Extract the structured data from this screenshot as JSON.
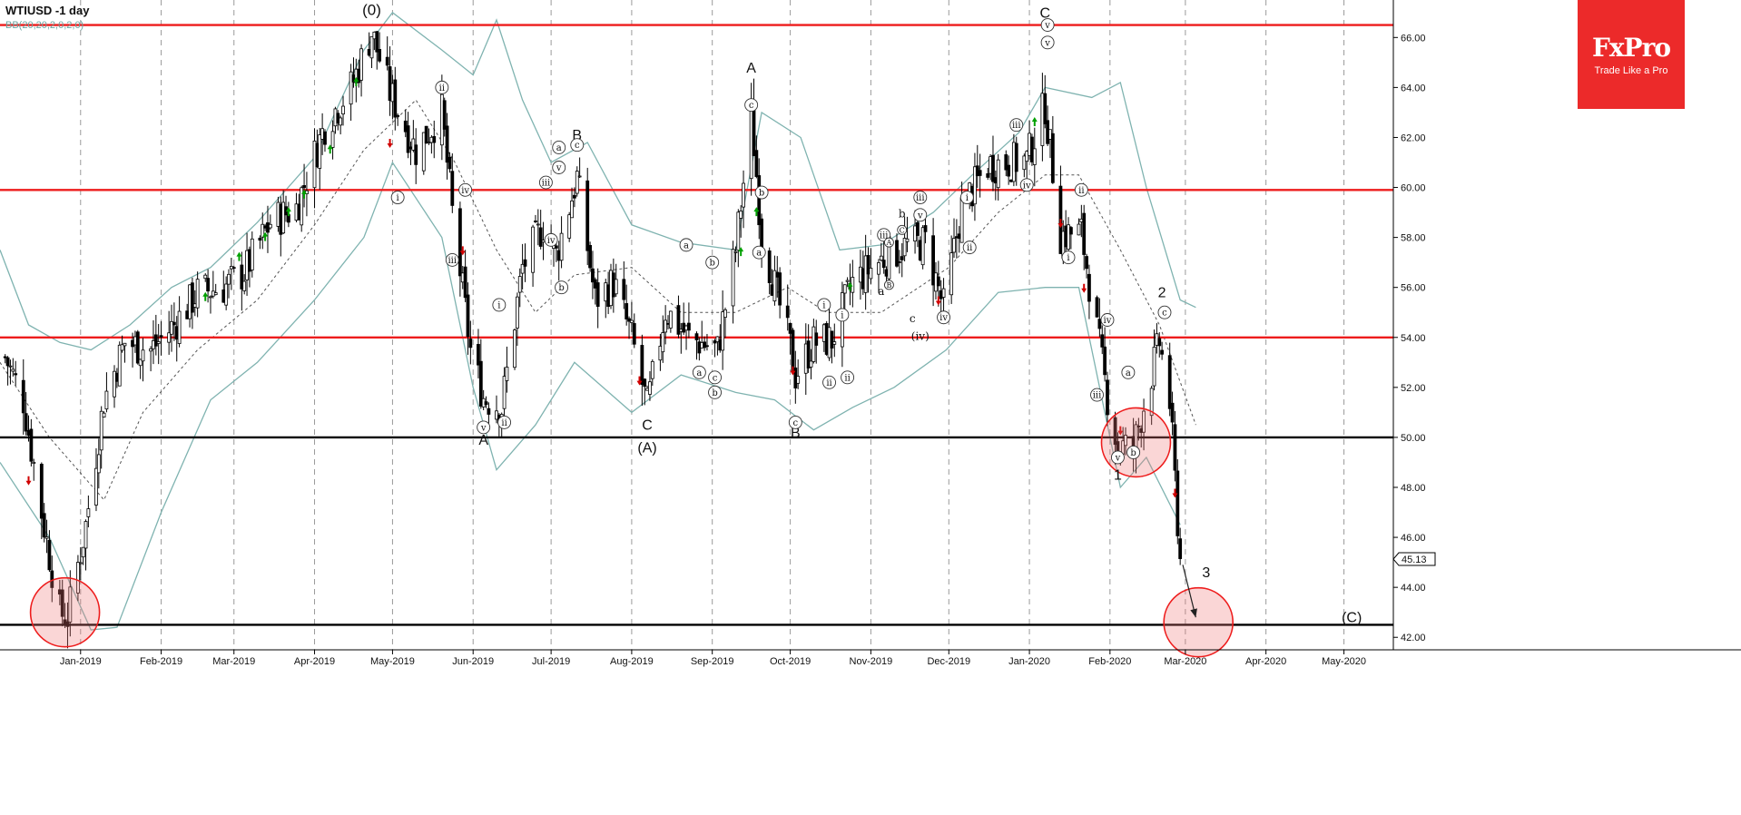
{
  "header": {
    "symbol_label": "WTIUSD -1 day",
    "indicator_label": "BB(20,20,2,0,2,0)"
  },
  "logo": {
    "name": "FxPro",
    "tagline": "Trade Like a Pro"
  },
  "colors": {
    "candle": "#000000",
    "bollinger": "#7fb3b0",
    "resistance": "#ee1c1c",
    "support": "#000000",
    "up_arrow": "#00a000",
    "down_arrow": "#d00000",
    "circle_fill": "rgba(240,120,120,0.30)",
    "circle_stroke": "#ee1c1c"
  },
  "chart_data": {
    "type": "candlestick",
    "price_axis": {
      "min": 41.5,
      "max": 67.5,
      "ticks": [
        "66.00",
        "64.00",
        "62.00",
        "60.00",
        "58.00",
        "56.00",
        "54.00",
        "52.00",
        "50.00",
        "48.00",
        "46.00",
        "44.00",
        "42.00"
      ],
      "tick_values": [
        66,
        64,
        62,
        60,
        58,
        56,
        54,
        52,
        50,
        48,
        46,
        44,
        42
      ]
    },
    "time_axis": {
      "start": "2018-12-01",
      "end": "2020-05-20",
      "labels": [
        "Jan-2019",
        "Feb-2019",
        "Mar-2019",
        "Apr-2019",
        "May-2019",
        "Jun-2019",
        "Jul-2019",
        "Aug-2019",
        "Sep-2019",
        "Oct-2019",
        "Nov-2019",
        "Dec-2019",
        "Jan-2020",
        "Feb-2020",
        "Mar-2020",
        "Apr-2020",
        "May-2020"
      ],
      "label_dates": [
        "2019-01-01",
        "2019-02-01",
        "2019-03-01",
        "2019-04-01",
        "2019-05-01",
        "2019-06-01",
        "2019-07-01",
        "2019-08-01",
        "2019-09-01",
        "2019-10-01",
        "2019-11-01",
        "2019-12-01",
        "2020-01-01",
        "2020-02-01",
        "2020-03-01",
        "2020-04-01",
        "2020-05-01"
      ]
    },
    "last_price": "45.13",
    "resistance_levels": [
      66.5,
      59.9,
      54.0
    ],
    "support_levels": [
      50.0,
      42.5
    ],
    "price_path": [
      [
        "2018-12-03",
        53.2
      ],
      [
        "2018-12-10",
        51.5
      ],
      [
        "2018-12-17",
        47.0
      ],
      [
        "2018-12-24",
        43.0
      ],
      [
        "2018-12-27",
        42.8
      ],
      [
        "2019-01-03",
        46.5
      ],
      [
        "2019-01-10",
        51.5
      ],
      [
        "2019-01-18",
        53.8
      ],
      [
        "2019-01-28",
        53.5
      ],
      [
        "2019-02-06",
        54.5
      ],
      [
        "2019-02-15",
        55.8
      ],
      [
        "2019-02-25",
        56.0
      ],
      [
        "2019-03-05",
        56.6
      ],
      [
        "2019-03-15",
        58.6
      ],
      [
        "2019-03-25",
        59.2
      ],
      [
        "2019-04-05",
        62.5
      ],
      [
        "2019-04-15",
        64.0
      ],
      [
        "2019-04-23",
        66.2
      ],
      [
        "2019-04-30",
        63.8
      ],
      [
        "2019-05-10",
        61.5
      ],
      [
        "2019-05-20",
        63.0
      ],
      [
        "2019-05-24",
        59.0
      ],
      [
        "2019-05-31",
        53.5
      ],
      [
        "2019-06-05",
        51.6
      ],
      [
        "2019-06-12",
        51.2
      ],
      [
        "2019-06-20",
        56.8
      ],
      [
        "2019-06-28",
        58.5
      ],
      [
        "2019-07-03",
        57.3
      ],
      [
        "2019-07-11",
        60.4
      ],
      [
        "2019-07-18",
        55.5
      ],
      [
        "2019-07-25",
        56.2
      ],
      [
        "2019-08-01",
        54.0
      ],
      [
        "2019-08-07",
        51.2
      ],
      [
        "2019-08-14",
        55.1
      ],
      [
        "2019-08-23",
        54.0
      ],
      [
        "2019-09-03",
        53.5
      ],
      [
        "2019-09-10",
        57.5
      ],
      [
        "2019-09-16",
        62.9
      ],
      [
        "2019-09-20",
        58.1
      ],
      [
        "2019-10-01",
        53.6
      ],
      [
        "2019-10-03",
        52.5
      ],
      [
        "2019-10-10",
        53.8
      ],
      [
        "2019-10-17",
        53.9
      ],
      [
        "2019-10-25",
        56.2
      ],
      [
        "2019-11-05",
        57.1
      ],
      [
        "2019-11-15",
        57.7
      ],
      [
        "2019-11-22",
        57.8
      ],
      [
        "2019-11-29",
        55.2
      ],
      [
        "2019-12-06",
        59.2
      ],
      [
        "2019-12-16",
        60.9
      ],
      [
        "2019-12-31",
        61.1
      ],
      [
        "2020-01-07",
        63.3
      ],
      [
        "2020-01-13",
        58.1
      ],
      [
        "2020-01-21",
        58.2
      ],
      [
        "2020-01-31",
        51.6
      ],
      [
        "2020-02-04",
        49.6
      ],
      [
        "2020-02-10",
        49.6
      ],
      [
        "2020-02-20",
        53.8
      ],
      [
        "2020-02-24",
        51.4
      ],
      [
        "2020-02-28",
        45.1
      ]
    ],
    "bollinger_upper": [
      [
        "2018-12-01",
        57.5
      ],
      [
        "2018-12-12",
        54.5
      ],
      [
        "2018-12-24",
        53.8
      ],
      [
        "2019-01-05",
        53.5
      ],
      [
        "2019-01-20",
        54.5
      ],
      [
        "2019-02-05",
        56.0
      ],
      [
        "2019-02-20",
        56.8
      ],
      [
        "2019-03-10",
        58.6
      ],
      [
        "2019-04-01",
        61.2
      ],
      [
        "2019-04-20",
        65.5
      ],
      [
        "2019-05-01",
        67.0
      ],
      [
        "2019-05-20",
        65.5
      ],
      [
        "2019-06-01",
        64.5
      ],
      [
        "2019-06-10",
        66.7
      ],
      [
        "2019-06-20",
        63.5
      ],
      [
        "2019-07-01",
        61.0
      ],
      [
        "2019-07-15",
        61.8
      ],
      [
        "2019-08-01",
        58.5
      ],
      [
        "2019-08-20",
        57.8
      ],
      [
        "2019-09-10",
        57.5
      ],
      [
        "2019-09-20",
        63.0
      ],
      [
        "2019-10-05",
        62.0
      ],
      [
        "2019-10-20",
        57.5
      ],
      [
        "2019-11-05",
        57.7
      ],
      [
        "2019-11-25",
        59.0
      ],
      [
        "2019-12-10",
        60.5
      ],
      [
        "2019-12-28",
        62.2
      ],
      [
        "2020-01-07",
        64.0
      ],
      [
        "2020-01-25",
        63.6
      ],
      [
        "2020-02-05",
        64.2
      ],
      [
        "2020-02-15",
        60.0
      ],
      [
        "2020-02-28",
        55.5
      ],
      [
        "2020-03-05",
        55.2
      ]
    ],
    "bollinger_middle": [
      [
        "2018-12-01",
        53.0
      ],
      [
        "2018-12-20",
        50.0
      ],
      [
        "2019-01-10",
        47.5
      ],
      [
        "2019-01-25",
        51.0
      ],
      [
        "2019-02-15",
        53.5
      ],
      [
        "2019-03-10",
        55.5
      ],
      [
        "2019-04-01",
        58.5
      ],
      [
        "2019-04-20",
        61.5
      ],
      [
        "2019-05-10",
        63.5
      ],
      [
        "2019-05-25",
        61.0
      ],
      [
        "2019-06-10",
        57.5
      ],
      [
        "2019-06-25",
        55.0
      ],
      [
        "2019-07-10",
        56.5
      ],
      [
        "2019-08-01",
        56.8
      ],
      [
        "2019-08-20",
        55.0
      ],
      [
        "2019-09-10",
        55.0
      ],
      [
        "2019-09-30",
        56.0
      ],
      [
        "2019-10-15",
        55.0
      ],
      [
        "2019-11-05",
        55.0
      ],
      [
        "2019-12-01",
        56.8
      ],
      [
        "2019-12-20",
        59.0
      ],
      [
        "2020-01-07",
        60.5
      ],
      [
        "2020-01-20",
        60.5
      ],
      [
        "2020-02-05",
        57.5
      ],
      [
        "2020-02-20",
        54.5
      ],
      [
        "2020-03-05",
        50.5
      ]
    ],
    "bollinger_lower": [
      [
        "2018-12-01",
        49.0
      ],
      [
        "2018-12-20",
        46.0
      ],
      [
        "2019-01-05",
        42.3
      ],
      [
        "2019-01-15",
        42.4
      ],
      [
        "2019-02-01",
        47.0
      ],
      [
        "2019-02-20",
        51.5
      ],
      [
        "2019-03-10",
        53.0
      ],
      [
        "2019-04-01",
        55.5
      ],
      [
        "2019-04-20",
        58.0
      ],
      [
        "2019-05-01",
        61.0
      ],
      [
        "2019-05-20",
        58.0
      ],
      [
        "2019-06-01",
        52.0
      ],
      [
        "2019-06-10",
        48.7
      ],
      [
        "2019-06-25",
        50.5
      ],
      [
        "2019-07-10",
        53.0
      ],
      [
        "2019-08-01",
        51.0
      ],
      [
        "2019-08-20",
        52.5
      ],
      [
        "2019-09-10",
        51.8
      ],
      [
        "2019-09-25",
        51.5
      ],
      [
        "2019-10-10",
        50.3
      ],
      [
        "2019-10-25",
        51.2
      ],
      [
        "2019-11-10",
        52.0
      ],
      [
        "2019-11-30",
        53.5
      ],
      [
        "2019-12-20",
        55.8
      ],
      [
        "2020-01-07",
        56.0
      ],
      [
        "2020-01-20",
        56.0
      ],
      [
        "2020-02-05",
        48.0
      ],
      [
        "2020-02-15",
        49.2
      ],
      [
        "2020-02-28",
        46.5
      ]
    ],
    "up_arrows": [
      [
        "2019-02-18",
        55.6
      ],
      [
        "2019-03-03",
        57.2
      ],
      [
        "2019-03-13",
        58.0
      ],
      [
        "2019-03-22",
        59.0
      ],
      [
        "2019-03-28",
        59.7
      ],
      [
        "2019-04-07",
        61.5
      ],
      [
        "2019-04-17",
        64.2
      ],
      [
        "2019-09-12",
        57.4
      ],
      [
        "2019-09-18",
        59.0
      ],
      [
        "2019-10-24",
        56.0
      ],
      [
        "2020-01-03",
        62.6
      ]
    ],
    "down_arrows": [
      [
        "2018-12-12",
        48.3
      ],
      [
        "2019-04-30",
        61.8
      ],
      [
        "2019-05-28",
        57.5
      ],
      [
        "2019-08-04",
        52.3
      ],
      [
        "2019-10-02",
        52.7
      ],
      [
        "2019-11-27",
        55.5
      ],
      [
        "2020-01-13",
        58.6
      ],
      [
        "2020-01-22",
        56.0
      ],
      [
        "2020-01-30",
        54.8
      ],
      [
        "2020-02-05",
        50.3
      ],
      [
        "2020-02-26",
        47.8
      ]
    ],
    "wave_labels": [
      {
        "text": "(0)",
        "date": "2019-04-23",
        "price": 66.9,
        "circle": false,
        "size": 17
      },
      {
        "text": "A",
        "date": "2019-09-16",
        "price": 64.6,
        "circle": false,
        "size": 16
      },
      {
        "text": "C",
        "date": "2020-01-07",
        "price": 66.8,
        "circle": false,
        "size": 16
      },
      {
        "text": "B",
        "date": "2019-07-11",
        "price": 61.9,
        "circle": false,
        "size": 16
      },
      {
        "text": "A",
        "date": "2019-06-05",
        "price": 49.7,
        "circle": false,
        "size": 16
      },
      {
        "text": "C",
        "date": "2019-08-07",
        "price": 50.3,
        "circle": false,
        "size": 16
      },
      {
        "text": "(A)",
        "date": "2019-08-07",
        "price": 49.4,
        "circle": false,
        "size": 16
      },
      {
        "text": "B",
        "date": "2019-10-03",
        "price": 50.0,
        "circle": false,
        "size": 16
      },
      {
        "text": "1",
        "date": "2020-02-04",
        "price": 48.3,
        "circle": false,
        "size": 16
      },
      {
        "text": "2",
        "date": "2020-02-21",
        "price": 55.6,
        "circle": false,
        "size": 16
      },
      {
        "text": "3",
        "date": "2020-03-09",
        "price": 44.4,
        "circle": false,
        "size": 16
      },
      {
        "text": "(C)",
        "date": "2020-05-04",
        "price": 42.6,
        "circle": false,
        "size": 16
      },
      {
        "text": "ii",
        "date": "2019-05-20",
        "price": 64.0,
        "circle": true
      },
      {
        "text": "i",
        "date": "2019-05-03",
        "price": 59.6,
        "circle": true
      },
      {
        "text": "iii",
        "date": "2019-05-24",
        "price": 57.1,
        "circle": true
      },
      {
        "text": "iv",
        "date": "2019-05-29",
        "price": 59.9,
        "circle": true
      },
      {
        "text": "i",
        "date": "2019-06-11",
        "price": 55.3,
        "circle": true
      },
      {
        "text": "v",
        "date": "2019-06-05",
        "price": 50.4,
        "circle": true
      },
      {
        "text": "ii",
        "date": "2019-06-13",
        "price": 50.6,
        "circle": true
      },
      {
        "text": "iii",
        "date": "2019-06-29",
        "price": 60.2,
        "circle": true
      },
      {
        "text": "a",
        "date": "2019-07-04",
        "price": 61.6,
        "circle": true
      },
      {
        "text": "v",
        "date": "2019-07-04",
        "price": 60.8,
        "circle": true
      },
      {
        "text": "iv",
        "date": "2019-07-01",
        "price": 57.9,
        "circle": true
      },
      {
        "text": "b",
        "date": "2019-07-05",
        "price": 56.0,
        "circle": true
      },
      {
        "text": "c",
        "date": "2019-07-11",
        "price": 61.7,
        "circle": true
      },
      {
        "text": "a",
        "date": "2019-08-22",
        "price": 57.7,
        "circle": true
      },
      {
        "text": "b",
        "date": "2019-09-01",
        "price": 57.0,
        "circle": true
      },
      {
        "text": "a",
        "date": "2019-08-27",
        "price": 52.6,
        "circle": true
      },
      {
        "text": "c",
        "date": "2019-09-02",
        "price": 52.4,
        "circle": true
      },
      {
        "text": "b",
        "date": "2019-09-02",
        "price": 51.8,
        "circle": true
      },
      {
        "text": "c",
        "date": "2019-09-16",
        "price": 63.3,
        "circle": true
      },
      {
        "text": "b",
        "date": "2019-09-20",
        "price": 59.8,
        "circle": true
      },
      {
        "text": "a",
        "date": "2019-09-19",
        "price": 57.4,
        "circle": true
      },
      {
        "text": "c",
        "date": "2019-10-03",
        "price": 50.6,
        "circle": true
      },
      {
        "text": "i",
        "date": "2019-10-14",
        "price": 55.3,
        "circle": true
      },
      {
        "text": "ii",
        "date": "2019-10-16",
        "price": 52.2,
        "circle": true
      },
      {
        "text": "i",
        "date": "2019-10-21",
        "price": 54.9,
        "circle": true
      },
      {
        "text": "ii",
        "date": "2019-10-23",
        "price": 52.4,
        "circle": true
      },
      {
        "text": "iii",
        "date": "2019-11-06",
        "price": 58.1,
        "circle": true
      },
      {
        "text": "A",
        "date": "2019-11-08",
        "price": 57.8,
        "circle": true,
        "small": true
      },
      {
        "text": "b",
        "date": "2019-11-13",
        "price": 58.8,
        "circle": false,
        "size": 12
      },
      {
        "text": "C",
        "date": "2019-11-13",
        "price": 58.3,
        "circle": true,
        "small": true
      },
      {
        "text": "a",
        "date": "2019-11-05",
        "price": 55.7,
        "circle": false,
        "size": 12
      },
      {
        "text": "B",
        "date": "2019-11-08",
        "price": 56.1,
        "circle": true,
        "small": true
      },
      {
        "text": "v",
        "date": "2019-11-20",
        "price": 58.9,
        "circle": true
      },
      {
        "text": "iii",
        "date": "2019-11-20",
        "price": 59.6,
        "circle": true
      },
      {
        "text": "c",
        "date": "2019-11-17",
        "price": 54.6,
        "circle": false,
        "size": 12
      },
      {
        "text": "(iv)",
        "date": "2019-11-20",
        "price": 53.9,
        "circle": false,
        "size": 12
      },
      {
        "text": "iv",
        "date": "2019-11-29",
        "price": 54.8,
        "circle": true
      },
      {
        "text": "i",
        "date": "2019-12-08",
        "price": 59.6,
        "circle": true
      },
      {
        "text": "ii",
        "date": "2019-12-09",
        "price": 57.6,
        "circle": true
      },
      {
        "text": "iii",
        "date": "2019-12-27",
        "price": 62.5,
        "circle": true
      },
      {
        "text": "iv",
        "date": "2019-12-31",
        "price": 60.1,
        "circle": true
      },
      {
        "text": "v",
        "date": "2020-01-08",
        "price": 65.8,
        "circle": true
      },
      {
        "text": "v",
        "date": "2020-01-08",
        "price": 66.5,
        "circle": true
      },
      {
        "text": "ii",
        "date": "2020-01-21",
        "price": 59.9,
        "circle": true
      },
      {
        "text": "i",
        "date": "2020-01-16",
        "price": 57.2,
        "circle": true
      },
      {
        "text": "iv",
        "date": "2020-01-31",
        "price": 54.7,
        "circle": true
      },
      {
        "text": "iii",
        "date": "2020-01-27",
        "price": 51.7,
        "circle": true
      },
      {
        "text": "a",
        "date": "2020-02-08",
        "price": 52.6,
        "circle": true
      },
      {
        "text": "v",
        "date": "2020-02-04",
        "price": 49.2,
        "circle": true
      },
      {
        "text": "b",
        "date": "2020-02-10",
        "price": 49.4,
        "circle": true
      },
      {
        "text": "c",
        "date": "2020-02-22",
        "price": 55.0,
        "circle": true
      }
    ],
    "highlight_circles": [
      {
        "date": "2018-12-26",
        "price": 43.0
      },
      {
        "date": "2020-02-11",
        "price": 49.8
      },
      {
        "date": "2020-03-06",
        "price": 42.6
      }
    ],
    "projection_arrow": {
      "from": [
        "2020-02-29",
        44.9
      ],
      "to": [
        "2020-03-05",
        42.8
      ]
    }
  }
}
